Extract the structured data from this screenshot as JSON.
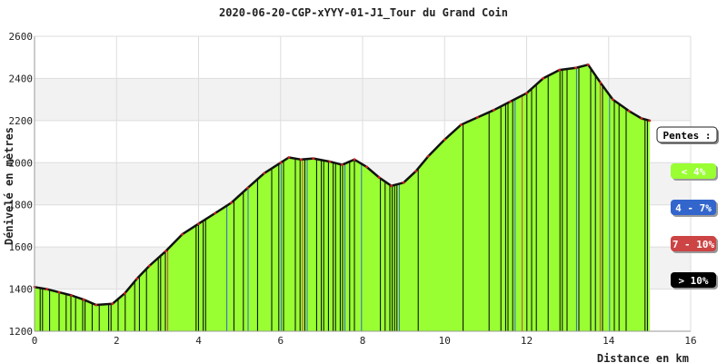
{
  "chart_data": {
    "type": "area",
    "title": "2020-06-20-CGP-xYYY-01-J1_Tour du Grand Coin",
    "xlabel": "Distance en km",
    "ylabel": "Dénivelé en mètres",
    "xlim": [
      0,
      16
    ],
    "ylim": [
      1200,
      2600
    ],
    "x_ticks": [
      "0",
      "2",
      "4",
      "6",
      "8",
      "10",
      "12",
      "14",
      "16"
    ],
    "y_ticks": [
      "1200",
      "1400",
      "1600",
      "1800",
      "2000",
      "2200",
      "2400",
      "2600"
    ],
    "grid": true,
    "legend_position": "right",
    "series": [
      {
        "x": [
          0,
          0.3,
          0.6,
          0.9,
          1.2,
          1.5,
          1.9,
          2.2,
          2.5,
          2.8,
          3.2,
          3.6,
          4.0,
          4.4,
          4.8,
          5.2,
          5.6,
          6.0,
          6.2,
          6.5,
          6.8,
          7.2,
          7.5,
          7.8,
          8.1,
          8.4,
          8.7,
          9.0,
          9.3,
          9.6,
          10.0,
          10.4,
          10.8,
          11.2,
          11.6,
          12.0,
          12.4,
          12.8,
          13.2,
          13.5,
          13.8,
          14.1,
          14.5,
          14.8,
          15.0
        ],
        "y": [
          1410,
          1400,
          1385,
          1370,
          1350,
          1325,
          1330,
          1380,
          1450,
          1510,
          1580,
          1660,
          1710,
          1760,
          1810,
          1880,
          1950,
          2000,
          2025,
          2015,
          2020,
          2005,
          1990,
          2015,
          1980,
          1930,
          1890,
          1905,
          1960,
          2030,
          2110,
          2180,
          2215,
          2250,
          2290,
          2330,
          2400,
          2440,
          2450,
          2465,
          2380,
          2300,
          2245,
          2210,
          2200
        ]
      }
    ],
    "legend": {
      "title": "Pentes :",
      "items": [
        {
          "label": "< 4%",
          "color": "#99ff33",
          "text_color": "#ffffff"
        },
        {
          "label": "4 - 7%",
          "color": "#3366cc",
          "text_color": "#ffffff"
        },
        {
          "label": "7 - 10%",
          "color": "#cc4444",
          "text_color": "#ffffff"
        },
        {
          "label": "> 10%",
          "color": "#000000",
          "text_color": "#ffffff"
        }
      ]
    },
    "colors": {
      "line": "#111111",
      "marker": "#cc2222",
      "band": "#f2f2f2",
      "grid": "#dddddd"
    }
  }
}
